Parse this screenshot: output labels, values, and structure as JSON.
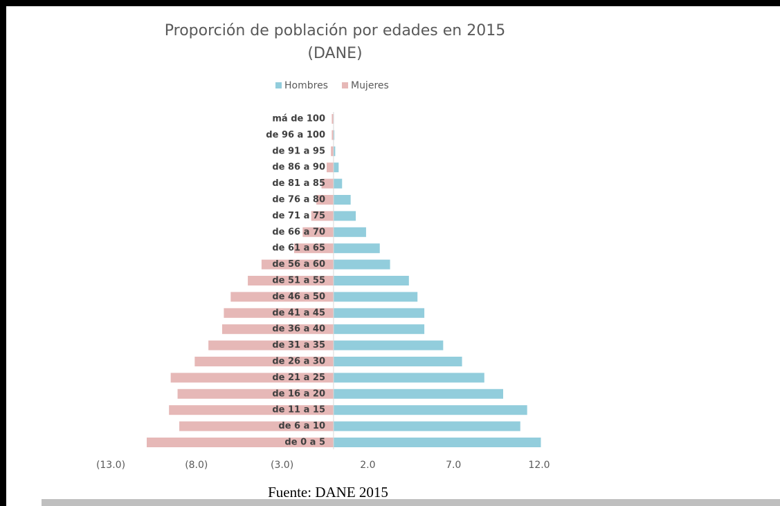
{
  "chart_data": {
    "type": "bar",
    "orientation": "horizontal",
    "title": [
      "Proporción de población por edades en 2015",
      "(DANE)"
    ],
    "categories": [
      "de 0 a 5",
      "de 6 a 10",
      "de 11 a 15",
      "de 16 a 20",
      "de 21 a 25",
      "de 26 a 30",
      "de 31 a 35",
      "de 36 a 40",
      "de 41 a 45",
      "de 46 a 50",
      "de 51 a 55",
      "de 56 a 60",
      "de 61 a 65",
      "de 66 a 70",
      "de 71 a 75",
      "de 76 a 80",
      "de 81 a 85",
      "de 86 a 90",
      "de 91 a 95",
      "de 96 a 100",
      "má de 100"
    ],
    "series": [
      {
        "name": "Hombres",
        "color": "#92cddc",
        "values": [
          12.1,
          10.9,
          11.3,
          9.9,
          8.8,
          7.5,
          6.4,
          5.3,
          5.3,
          4.9,
          4.4,
          3.3,
          2.7,
          1.9,
          1.3,
          1.0,
          0.5,
          0.3,
          0.1,
          0.05,
          0.02
        ]
      },
      {
        "name": "Mujeres",
        "color": "#e6b8b7",
        "values": [
          -10.9,
          -9.0,
          -9.6,
          -9.1,
          -9.5,
          -8.1,
          -7.3,
          -6.5,
          -6.4,
          -6.0,
          -5.0,
          -4.2,
          -2.3,
          -1.8,
          -1.3,
          -1.0,
          -0.7,
          -0.4,
          -0.15,
          -0.1,
          -0.1
        ]
      }
    ],
    "xlim": [
      -13,
      12
    ],
    "xticks": [
      {
        "value": -13,
        "label": "(13.0)"
      },
      {
        "value": -8,
        "label": "(8.0)"
      },
      {
        "value": -3,
        "label": "(3.0)"
      },
      {
        "value": 2,
        "label": "2.0"
      },
      {
        "value": 7,
        "label": "7.0"
      },
      {
        "value": 12,
        "label": "12.0"
      }
    ],
    "legend": "top",
    "source": "Fuente: DANE 2015"
  }
}
